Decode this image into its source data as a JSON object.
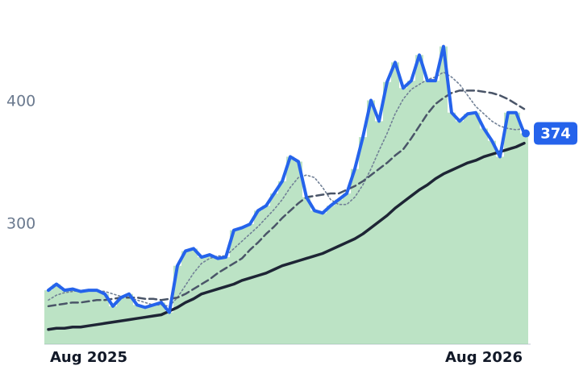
{
  "chart_data": {
    "type": "line",
    "categories": [
      null,
      null,
      null,
      null,
      null,
      "Aug 2025",
      null,
      null,
      null,
      null,
      null,
      null,
      null,
      null,
      null,
      null,
      null,
      null,
      null,
      null,
      null,
      null,
      null,
      null,
      null,
      null,
      null,
      null,
      null,
      null,
      null,
      null,
      null,
      null,
      null,
      null,
      null,
      null,
      null,
      null,
      null,
      null,
      null,
      null,
      null,
      null,
      null,
      null,
      null,
      null,
      null,
      null,
      null,
      null,
      "Aug 2026",
      null,
      null,
      null,
      null,
      null
    ],
    "ylim": [
      202,
      470
    ],
    "yticks": [
      300,
      400
    ],
    "grid": false,
    "area_color": "#8fd19e",
    "series": [
      {
        "color": "#2563eb",
        "style": "solid",
        "values": [
          246,
          251,
          246,
          247,
          245,
          246,
          246,
          243,
          233,
          240,
          243,
          234,
          232,
          234,
          236,
          228,
          266,
          278,
          280,
          273,
          275,
          272,
          273,
          295,
          297,
          300,
          311,
          315,
          325,
          335,
          355,
          351,
          322,
          311,
          309,
          315,
          320,
          325,
          345,
          371,
          401,
          384,
          416,
          432,
          411,
          417,
          438,
          417,
          417,
          445,
          391,
          384,
          390,
          391,
          378,
          368,
          355,
          391,
          391,
          374
        ]
      },
      {
        "color": "#1e2535",
        "style": "solid",
        "values": [
          214,
          215,
          215,
          216,
          216,
          217,
          218,
          219,
          220,
          221,
          222,
          223,
          224,
          225,
          226,
          229,
          232,
          236,
          239,
          243,
          245,
          247,
          249,
          251,
          254,
          256,
          258,
          260,
          263,
          266,
          268,
          270,
          272,
          274,
          276,
          279,
          282,
          285,
          288,
          292,
          297,
          302,
          307,
          313,
          318,
          323,
          328,
          332,
          337,
          341,
          344,
          347,
          350,
          352,
          355,
          357,
          359,
          361,
          363,
          366
        ]
      },
      {
        "color": "#4a5568",
        "style": "dashed",
        "values": [
          233,
          234,
          235,
          236,
          236,
          237,
          238,
          238,
          239,
          240,
          240,
          240,
          239,
          239,
          238,
          239,
          240,
          243,
          247,
          251,
          255,
          260,
          264,
          268,
          272,
          279,
          285,
          292,
          298,
          305,
          311,
          317,
          322,
          323,
          324,
          325,
          325,
          328,
          331,
          335,
          340,
          345,
          350,
          356,
          361,
          370,
          380,
          390,
          398,
          403,
          407,
          409,
          409,
          409,
          408,
          407,
          405,
          402,
          398,
          394
        ]
      },
      {
        "color": "#718096",
        "style": "dotted",
        "values": [
          238,
          242,
          244,
          245,
          246,
          246,
          246,
          245,
          243,
          241,
          240,
          238,
          236,
          234,
          234,
          233,
          240,
          250,
          260,
          268,
          272,
          274,
          274,
          280,
          286,
          292,
          298,
          305,
          312,
          320,
          330,
          338,
          340,
          338,
          330,
          320,
          316,
          316,
          322,
          332,
          345,
          360,
          374,
          390,
          402,
          410,
          414,
          418,
          420,
          424,
          420,
          414,
          405,
          396,
          390,
          384,
          380,
          378,
          377,
          378
        ]
      }
    ]
  }
}
